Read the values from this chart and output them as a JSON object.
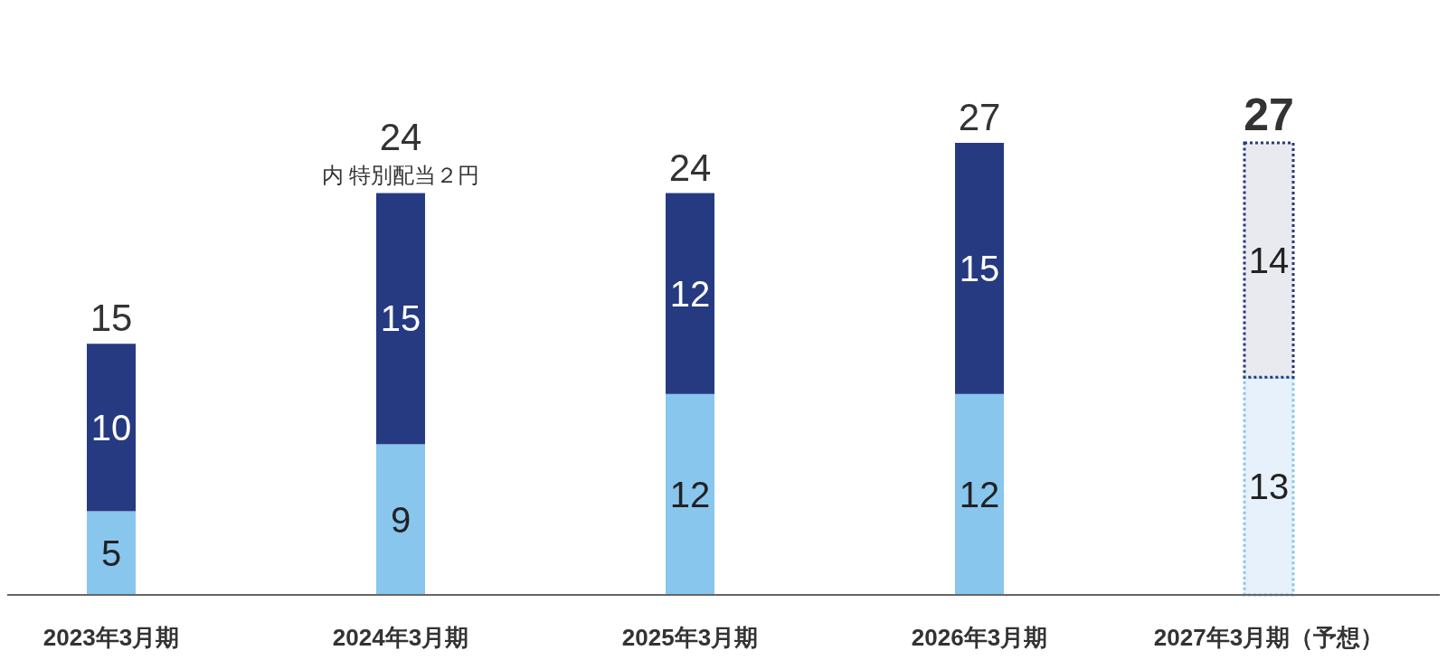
{
  "chart_data": {
    "type": "bar",
    "stacked": true,
    "categories": [
      "2023年3月期",
      "2024年3月期",
      "2025年3月期",
      "2026年3月期",
      "2027年3月期（予想）"
    ],
    "series": [
      {
        "color": "#88c6ee",
        "colors": [
          "#88c6ee",
          "#88c6ee",
          "#88c6ee",
          "#88c6ee",
          "#e6f1fb"
        ],
        "values": [
          5,
          9,
          12,
          12,
          13
        ]
      },
      {
        "color": "#263a82",
        "colors": [
          "#263a82",
          "#263a82",
          "#263a82",
          "#263a82",
          "#e9e9f0"
        ],
        "values": [
          10,
          15,
          12,
          15,
          14
        ]
      }
    ],
    "data_labels": true,
    "totals": [
      "15",
      "24",
      "24",
      "27",
      "27"
    ],
    "annotations": [
      {
        "text": "内 特別配当２円",
        "x": "2024年3月期",
        "y": 24
      }
    ],
    "tick_labels": "x"
  }
}
